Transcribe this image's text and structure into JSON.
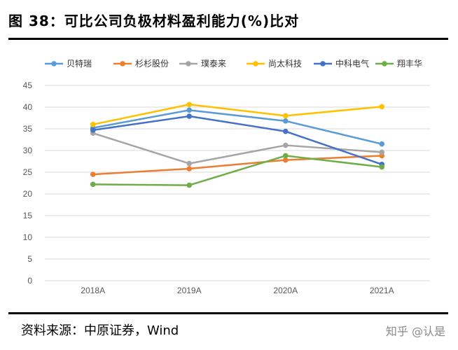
{
  "title": "图 38：可比公司负极材料盈利能力(%)比对",
  "source": "资料来源：中原证券，Wind",
  "watermark": "知乎 @认是",
  "chart_data": {
    "type": "line",
    "categories": [
      "2018A",
      "2019A",
      "2020A",
      "2021A"
    ],
    "ylim": [
      0,
      45
    ],
    "yticks": [
      0,
      5,
      10,
      15,
      20,
      25,
      30,
      35,
      40,
      45
    ],
    "grid": true,
    "legend_position": "top",
    "series": [
      {
        "name": "贝特瑞",
        "color": "#5B9BD5",
        "values": [
          35.2,
          39.3,
          36.8,
          31.5
        ]
      },
      {
        "name": "杉杉股份",
        "color": "#ED7D31",
        "values": [
          24.5,
          25.8,
          27.8,
          28.8
        ]
      },
      {
        "name": "璞泰来",
        "color": "#A5A5A5",
        "values": [
          34.0,
          27.0,
          31.2,
          29.6
        ]
      },
      {
        "name": "尚太科技",
        "color": "#FFC000",
        "values": [
          36.0,
          40.6,
          38.0,
          40.1
        ]
      },
      {
        "name": "中科电气",
        "color": "#4472C4",
        "values": [
          34.7,
          37.9,
          34.4,
          26.8
        ]
      },
      {
        "name": "翔丰华",
        "color": "#70AD47",
        "values": [
          22.2,
          22.0,
          28.8,
          26.2
        ]
      }
    ]
  }
}
